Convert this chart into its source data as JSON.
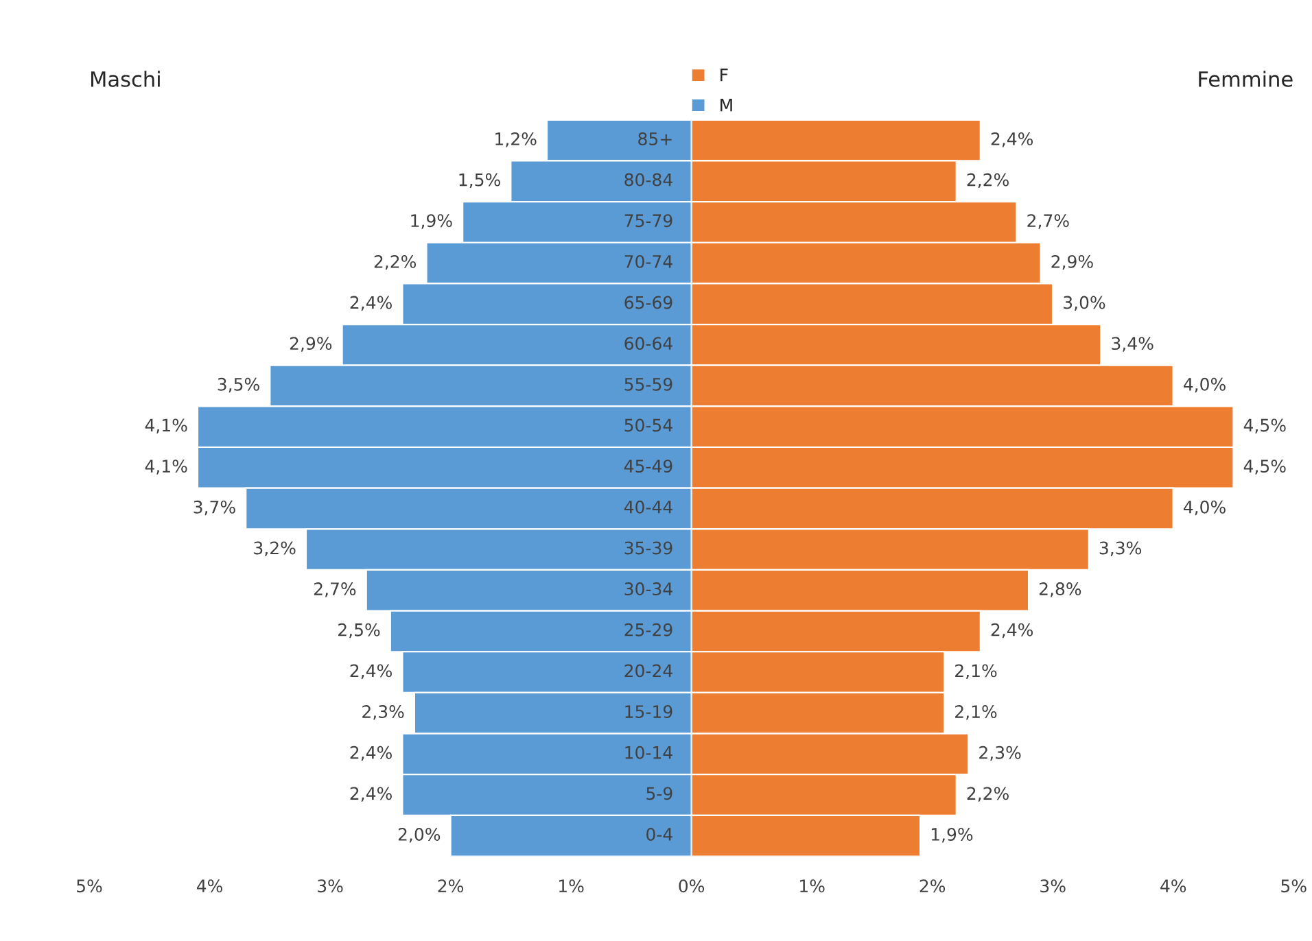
{
  "chart_data": [
    {
      "type": "bar",
      "orientation": "horizontal",
      "categories": [
        "85+",
        "80-84",
        "75-79",
        "70-74",
        "65-69",
        "60-64",
        "55-59",
        "50-54",
        "45-49",
        "40-44",
        "35-39",
        "30-34",
        "25-29",
        "20-24",
        "15-19",
        "10-14",
        "5-9",
        "0-4"
      ],
      "series": [
        {
          "name": "M",
          "color": "#5b9bd5",
          "values": [
            1.2,
            1.5,
            1.9,
            2.2,
            2.4,
            2.9,
            3.5,
            4.1,
            4.1,
            3.7,
            3.2,
            2.7,
            2.5,
            2.4,
            2.3,
            2.4,
            2.4,
            2.0
          ],
          "value_labels": [
            "1,2%",
            "1,5%",
            "1,9%",
            "2,2%",
            "2,4%",
            "2,9%",
            "3,5%",
            "4,1%",
            "4,1%",
            "3,7%",
            "3,2%",
            "2,7%",
            "2,5%",
            "2,4%",
            "2,3%",
            "2,4%",
            "2,4%",
            "2,0%"
          ]
        }
      ],
      "xlim": [
        5,
        0
      ],
      "xticks": [
        {
          "value": 5,
          "label": "5%"
        },
        {
          "value": 4,
          "label": "4%"
        },
        {
          "value": 3,
          "label": "3%"
        },
        {
          "value": 2,
          "label": "2%"
        },
        {
          "value": 1,
          "label": "1%"
        },
        {
          "value": 0,
          "label": "0%"
        }
      ],
      "annotations": [
        "Maschi"
      ],
      "legend": "top right",
      "grid": false
    },
    {
      "type": "bar",
      "orientation": "horizontal",
      "categories": [
        null,
        null,
        null,
        null,
        null,
        null,
        null,
        null,
        null,
        null,
        null,
        null,
        null,
        null,
        null,
        null,
        null,
        null
      ],
      "tick_labels": "x",
      "series": [
        {
          "name": "F",
          "color": "#ed7d31",
          "values": [
            2.4,
            2.2,
            2.7,
            2.9,
            3.0,
            3.4,
            4.0,
            4.5,
            4.5,
            4.0,
            3.3,
            2.8,
            2.4,
            2.1,
            2.1,
            2.3,
            2.2,
            1.9
          ],
          "value_labels": [
            "2,4%",
            "2,2%",
            "2,7%",
            "2,9%",
            "3,0%",
            "3,4%",
            "4,0%",
            "4,5%",
            "4,5%",
            "4,0%",
            "3,3%",
            "2,8%",
            "2,4%",
            "2,1%",
            "2,1%",
            "2,3%",
            "2,2%",
            "1,9%"
          ]
        }
      ],
      "xlim": [
        0,
        5
      ],
      "xticks": [
        {
          "value": 1,
          "label": "1%"
        },
        {
          "value": 2,
          "label": "2%"
        },
        {
          "value": 3,
          "label": "3%"
        },
        {
          "value": 4,
          "label": "4%"
        },
        {
          "value": 5,
          "label": "5%"
        }
      ],
      "annotations": [
        "Femmine"
      ],
      "legend": "top left",
      "grid": false
    }
  ]
}
